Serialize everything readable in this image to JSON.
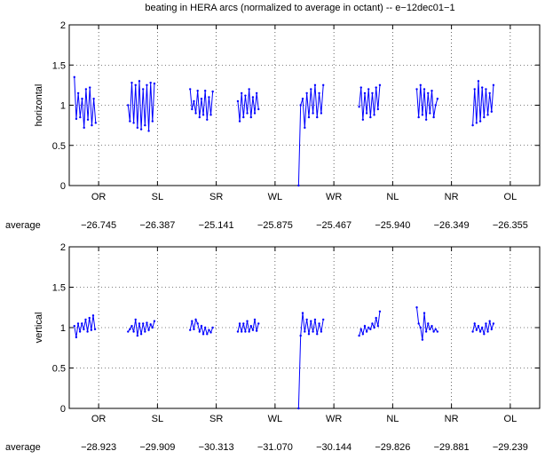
{
  "title": "beating in HERA arcs (normalized to average in octant) -- e−12dec01−1",
  "colors": {
    "series": "#0000ff",
    "axis": "#000000",
    "grid": "#000000"
  },
  "average_label": "average",
  "chart_data": [
    {
      "type": "line",
      "ylabel": "horizontal",
      "ylim": [
        0,
        2
      ],
      "yticks": [
        "0",
        "0.5",
        "1",
        "1.5",
        "2"
      ],
      "xlim": [
        0,
        8
      ],
      "categories": [
        "OR",
        "SL",
        "SR",
        "WL",
        "WR",
        "NL",
        "NR",
        "OL"
      ],
      "averages": [
        "−26.745",
        "−26.387",
        "−25.141",
        "−25.875",
        "−25.467",
        "−25.940",
        "−26.349",
        "−26.355"
      ],
      "grid": true,
      "series": [
        {
          "octant": "OR",
          "x": [
            0.087,
            0.12,
            0.153,
            0.186,
            0.219,
            0.252,
            0.285,
            0.318,
            0.351,
            0.384,
            0.417,
            0.45
          ],
          "y": [
            1.35,
            0.83,
            1.15,
            0.85,
            1.08,
            0.72,
            1.2,
            0.82,
            1.22,
            0.75,
            1.08,
            0.78
          ]
        },
        {
          "octant": "SL",
          "x": [
            1.0,
            1.032,
            1.064,
            1.096,
            1.128,
            1.16,
            1.192,
            1.224,
            1.256,
            1.288,
            1.32,
            1.352,
            1.384,
            1.416,
            1.448
          ],
          "y": [
            1.0,
            0.8,
            1.28,
            0.78,
            1.25,
            0.72,
            1.3,
            0.7,
            1.2,
            0.75,
            1.25,
            0.68,
            1.28,
            0.8,
            1.27
          ]
        },
        {
          "octant": "SR",
          "x": [
            2.056,
            2.088,
            2.12,
            2.152,
            2.184,
            2.216,
            2.248,
            2.28,
            2.312,
            2.344,
            2.376,
            2.408,
            2.44
          ],
          "y": [
            1.2,
            0.95,
            1.05,
            0.9,
            1.18,
            0.85,
            1.08,
            0.88,
            1.18,
            0.82,
            1.1,
            0.88,
            1.17
          ]
        },
        {
          "octant": "WL",
          "x": [
            2.867,
            2.899,
            2.931,
            2.963,
            2.995,
            3.027,
            3.059,
            3.091,
            3.123,
            3.155,
            3.187,
            3.219
          ],
          "y": [
            1.05,
            0.8,
            1.15,
            0.85,
            1.12,
            0.9,
            1.2,
            0.85,
            1.1,
            0.9,
            1.15,
            0.95
          ]
        },
        {
          "octant": "WR",
          "x": [
            3.9,
            3.935,
            3.97,
            4.005,
            4.04,
            4.075,
            4.11,
            4.145,
            4.18,
            4.215,
            4.25,
            4.285,
            4.32
          ],
          "y": [
            0.0,
            1.0,
            1.08,
            0.72,
            1.15,
            0.85,
            1.2,
            0.9,
            1.25,
            0.85,
            1.15,
            0.9,
            1.25
          ]
        },
        {
          "octant": "NL",
          "x": [
            4.93,
            4.962,
            4.994,
            5.026,
            5.058,
            5.09,
            5.122,
            5.154,
            5.186,
            5.218,
            5.25,
            5.282
          ],
          "y": [
            0.98,
            1.22,
            0.82,
            1.15,
            0.9,
            1.2,
            0.85,
            1.15,
            0.88,
            1.22,
            0.95,
            1.25
          ]
        },
        {
          "octant": "NR",
          "x": [
            5.91,
            5.942,
            5.974,
            6.006,
            6.038,
            6.07,
            6.102,
            6.134,
            6.166,
            6.198,
            6.23,
            6.262
          ],
          "y": [
            1.2,
            0.85,
            1.25,
            0.88,
            1.2,
            0.82,
            1.15,
            0.9,
            1.18,
            0.85,
            1.0,
            1.08
          ]
        },
        {
          "octant": "OL",
          "x": [
            6.862,
            6.894,
            6.926,
            6.958,
            6.99,
            7.022,
            7.054,
            7.086,
            7.118,
            7.15,
            7.182,
            7.214
          ],
          "y": [
            0.75,
            1.2,
            0.78,
            1.3,
            0.8,
            1.22,
            0.85,
            1.2,
            0.88,
            1.15,
            0.92,
            1.25
          ]
        }
      ]
    },
    {
      "type": "line",
      "ylabel": "vertical",
      "ylim": [
        0,
        2
      ],
      "yticks": [
        "0",
        "0.5",
        "1",
        "1.5",
        "2"
      ],
      "xlim": [
        0,
        8
      ],
      "categories": [
        "OR",
        "SL",
        "SR",
        "WL",
        "WR",
        "NL",
        "NR",
        "OL"
      ],
      "averages": [
        "−28.923",
        "−29.909",
        "−30.313",
        "−31.070",
        "−30.144",
        "−29.826",
        "−29.881",
        "−29.239"
      ],
      "grid": true,
      "series": [
        {
          "octant": "OR",
          "x": [
            0.087,
            0.119,
            0.151,
            0.183,
            0.215,
            0.247,
            0.279,
            0.311,
            0.343,
            0.375,
            0.407,
            0.439
          ],
          "y": [
            1.02,
            0.88,
            1.05,
            0.95,
            1.05,
            0.98,
            1.1,
            0.95,
            1.12,
            0.97,
            1.15,
            0.98
          ]
        },
        {
          "octant": "SL",
          "x": [
            1.0,
            1.032,
            1.064,
            1.096,
            1.128,
            1.16,
            1.192,
            1.224,
            1.256,
            1.288,
            1.32,
            1.352,
            1.384,
            1.416,
            1.448
          ],
          "y": [
            0.95,
            0.98,
            1.02,
            0.95,
            1.1,
            0.9,
            1.05,
            0.92,
            1.05,
            0.95,
            1.06,
            0.97,
            1.04,
            1.0,
            1.08
          ]
        },
        {
          "octant": "SR",
          "x": [
            2.056,
            2.088,
            2.12,
            2.152,
            2.184,
            2.216,
            2.248,
            2.28,
            2.312,
            2.344,
            2.376,
            2.408,
            2.44
          ],
          "y": [
            0.97,
            1.08,
            0.98,
            1.1,
            1.05,
            0.95,
            1.02,
            0.92,
            1.0,
            0.92,
            0.97,
            0.94,
            1.0
          ]
        },
        {
          "octant": "WL",
          "x": [
            2.867,
            2.899,
            2.931,
            2.963,
            2.995,
            3.027,
            3.059,
            3.091,
            3.123,
            3.155,
            3.187,
            3.219
          ],
          "y": [
            0.95,
            1.05,
            0.95,
            1.05,
            0.95,
            1.08,
            0.95,
            1.02,
            0.97,
            1.1,
            0.96,
            1.05
          ]
        },
        {
          "octant": "WR",
          "x": [
            3.9,
            3.935,
            3.97,
            4.005,
            4.04,
            4.075,
            4.11,
            4.145,
            4.18,
            4.215,
            4.25,
            4.285,
            4.32
          ],
          "y": [
            0.0,
            0.9,
            1.18,
            0.95,
            1.1,
            0.92,
            1.08,
            0.95,
            1.1,
            0.92,
            1.05,
            0.95,
            1.1
          ]
        },
        {
          "octant": "NL",
          "x": [
            4.93,
            4.962,
            4.994,
            5.026,
            5.058,
            5.09,
            5.122,
            5.154,
            5.186,
            5.218,
            5.25,
            5.282
          ],
          "y": [
            0.9,
            0.98,
            0.92,
            1.02,
            0.95,
            1.0,
            0.98,
            1.05,
            1.0,
            1.12,
            1.02,
            1.2
          ]
        },
        {
          "octant": "NR",
          "x": [
            5.91,
            5.942,
            5.974,
            6.006,
            6.038,
            6.07,
            6.102,
            6.134,
            6.166,
            6.198,
            6.23,
            6.262
          ],
          "y": [
            1.25,
            1.05,
            1.0,
            0.85,
            1.18,
            0.95,
            1.05,
            0.98,
            1.02,
            0.95,
            0.98,
            0.95
          ]
        },
        {
          "octant": "OL",
          "x": [
            6.862,
            6.894,
            6.926,
            6.958,
            6.99,
            7.022,
            7.054,
            7.086,
            7.118,
            7.15,
            7.182,
            7.214
          ],
          "y": [
            0.95,
            1.05,
            0.97,
            1.02,
            0.95,
            1.0,
            0.92,
            1.05,
            0.95,
            1.08,
            0.98,
            1.05
          ]
        }
      ]
    }
  ]
}
